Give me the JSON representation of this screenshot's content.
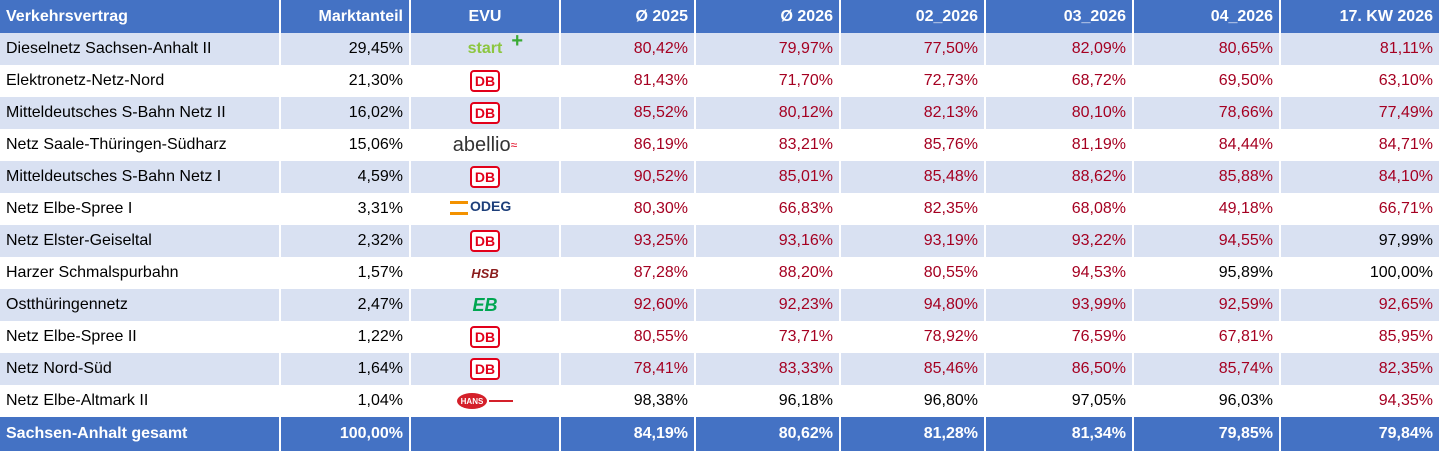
{
  "columns": [
    "Verkehrsvertrag",
    "Marktanteil",
    "EVU",
    "Ø 2025",
    "Ø 2026",
    "02_2026",
    "03_2026",
    "04_2026",
    "17. KW 2026"
  ],
  "colors": {
    "header_bg": "#4472c4",
    "stripe_bg": "#d9e1f2",
    "value_red": "#a50021"
  },
  "rows": [
    {
      "name": "Dieselnetz Sachsen-Anhalt II",
      "share": "29,45%",
      "evu": "start",
      "values": [
        "80,42%",
        "79,97%",
        "77,50%",
        "82,09%",
        "80,65%",
        "81,11%"
      ],
      "value_colors": [
        "red",
        "red",
        "red",
        "red",
        "red",
        "red"
      ]
    },
    {
      "name": "Elektronetz-Netz-Nord",
      "share": "21,30%",
      "evu": "db",
      "evu_text": "DB",
      "values": [
        "81,43%",
        "71,70%",
        "72,73%",
        "68,72%",
        "69,50%",
        "63,10%"
      ],
      "value_colors": [
        "red",
        "red",
        "red",
        "red",
        "red",
        "red"
      ]
    },
    {
      "name": "Mitteldeutsches S-Bahn Netz II",
      "share": "16,02%",
      "evu": "db",
      "evu_text": "DB",
      "values": [
        "85,52%",
        "80,12%",
        "82,13%",
        "80,10%",
        "78,66%",
        "77,49%"
      ],
      "value_colors": [
        "red",
        "red",
        "red",
        "red",
        "red",
        "red"
      ]
    },
    {
      "name": "Netz Saale-Thüringen-Südharz",
      "share": "15,06%",
      "evu": "abellio",
      "evu_text": "abellio",
      "values": [
        "86,19%",
        "83,21%",
        "85,76%",
        "81,19%",
        "84,44%",
        "84,71%"
      ],
      "value_colors": [
        "red",
        "red",
        "red",
        "red",
        "red",
        "red"
      ]
    },
    {
      "name": "Mitteldeutsches S-Bahn Netz I",
      "share": "4,59%",
      "evu": "db",
      "evu_text": "DB",
      "values": [
        "90,52%",
        "85,01%",
        "85,48%",
        "88,62%",
        "85,88%",
        "84,10%"
      ],
      "value_colors": [
        "red",
        "red",
        "red",
        "red",
        "red",
        "red"
      ]
    },
    {
      "name": "Netz Elbe-Spree I",
      "share": "3,31%",
      "evu": "odeg",
      "evu_text": "ODEG",
      "values": [
        "80,30%",
        "66,83%",
        "82,35%",
        "68,08%",
        "49,18%",
        "66,71%"
      ],
      "value_colors": [
        "red",
        "red",
        "red",
        "red",
        "red",
        "red"
      ]
    },
    {
      "name": "Netz Elster-Geiseltal",
      "share": "2,32%",
      "evu": "db",
      "evu_text": "DB",
      "values": [
        "93,25%",
        "93,16%",
        "93,19%",
        "93,22%",
        "94,55%",
        "97,99%"
      ],
      "value_colors": [
        "red",
        "red",
        "red",
        "red",
        "red",
        "black"
      ]
    },
    {
      "name": "Harzer Schmalspurbahn",
      "share": "1,57%",
      "evu": "hsb",
      "evu_text": "HSB",
      "values": [
        "87,28%",
        "88,20%",
        "80,55%",
        "94,53%",
        "95,89%",
        "100,00%"
      ],
      "value_colors": [
        "red",
        "red",
        "red",
        "red",
        "black",
        "black"
      ]
    },
    {
      "name": "Ostthüringennetz",
      "share": "2,47%",
      "evu": "eb",
      "evu_text": "EB",
      "values": [
        "92,60%",
        "92,23%",
        "94,80%",
        "93,99%",
        "92,59%",
        "92,65%"
      ],
      "value_colors": [
        "red",
        "red",
        "red",
        "red",
        "red",
        "red"
      ]
    },
    {
      "name": "Netz Elbe-Spree II",
      "share": "1,22%",
      "evu": "db",
      "evu_text": "DB",
      "values": [
        "80,55%",
        "73,71%",
        "78,92%",
        "76,59%",
        "67,81%",
        "85,95%"
      ],
      "value_colors": [
        "red",
        "red",
        "red",
        "red",
        "red",
        "red"
      ]
    },
    {
      "name": "Netz Nord-Süd",
      "share": "1,64%",
      "evu": "db",
      "evu_text": "DB",
      "values": [
        "78,41%",
        "83,33%",
        "85,46%",
        "86,50%",
        "85,74%",
        "82,35%"
      ],
      "value_colors": [
        "red",
        "red",
        "red",
        "red",
        "red",
        "red"
      ]
    },
    {
      "name": "Netz Elbe-Altmark II",
      "share": "1,04%",
      "evu": "hans",
      "values": [
        "98,38%",
        "96,18%",
        "96,80%",
        "97,05%",
        "96,03%",
        "94,35%"
      ],
      "value_colors": [
        "black",
        "black",
        "black",
        "black",
        "black",
        "red"
      ]
    }
  ],
  "total": {
    "name": "Sachsen-Anhalt gesamt",
    "share": "100,00%",
    "evu": "",
    "values": [
      "84,19%",
      "80,62%",
      "81,28%",
      "81,34%",
      "79,85%",
      "79,84%"
    ]
  }
}
